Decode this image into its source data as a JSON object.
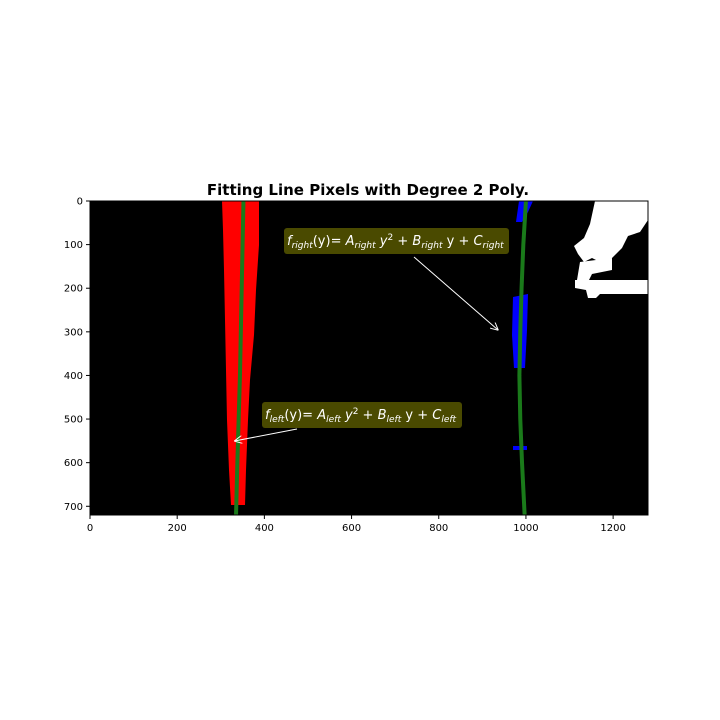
{
  "chart_data": {
    "type": "image",
    "title": "Fitting Line Pixels with Degree 2 Poly.",
    "xlim": [
      0,
      1280
    ],
    "ylim": [
      720,
      0
    ],
    "x_ticks": [
      0,
      200,
      400,
      600,
      800,
      1000,
      1200
    ],
    "y_ticks": [
      0,
      100,
      200,
      300,
      400,
      500,
      600,
      700
    ],
    "grid": false,
    "colors": {
      "background": "#000000",
      "left_pixels": "#ff0000",
      "right_pixels": "#0000ff",
      "fit_line": "#1a7a1a",
      "other_pixels": "#ffffff",
      "annotation_box": "#4a4a00"
    },
    "fits": [
      {
        "lane": "left",
        "points": [
          [
            352,
            0
          ],
          [
            350,
            100
          ],
          [
            348,
            200
          ],
          [
            346,
            300
          ],
          [
            344,
            400
          ],
          [
            341,
            500
          ],
          [
            338,
            600
          ],
          [
            335,
            720
          ]
        ]
      },
      {
        "lane": "right",
        "points": [
          [
            1000,
            0
          ],
          [
            994,
            100
          ],
          [
            990,
            200
          ],
          [
            987,
            300
          ],
          [
            985,
            400
          ],
          [
            987,
            500
          ],
          [
            991,
            600
          ],
          [
            997,
            720
          ]
        ]
      }
    ],
    "annotations": [
      {
        "id": "right",
        "pieces": [
          {
            "t": "f",
            "style": "italic"
          },
          {
            "t": "right",
            "style": "sub"
          },
          {
            "t": "(y)= ",
            "style": "normal"
          },
          {
            "t": "A",
            "style": "italic"
          },
          {
            "t": "right",
            "style": "sub"
          },
          {
            "t": " y",
            "style": "italic"
          },
          {
            "t": "2",
            "style": "sup"
          },
          {
            "t": " + ",
            "style": "normal"
          },
          {
            "t": "B",
            "style": "italic"
          },
          {
            "t": "right",
            "style": "sub"
          },
          {
            "t": " y + ",
            "style": "normal"
          },
          {
            "t": "C",
            "style": "italic"
          },
          {
            "t": "right",
            "style": "sub"
          }
        ],
        "arrow_to": [
          935,
          295
        ]
      },
      {
        "id": "left",
        "pieces": [
          {
            "t": "f",
            "style": "italic"
          },
          {
            "t": "left",
            "style": "sub"
          },
          {
            "t": "(y)= ",
            "style": "normal"
          },
          {
            "t": "A",
            "style": "italic"
          },
          {
            "t": "left",
            "style": "sub"
          },
          {
            "t": " y",
            "style": "italic"
          },
          {
            "t": "2",
            "style": "sup"
          },
          {
            "t": " + ",
            "style": "normal"
          },
          {
            "t": "B",
            "style": "italic"
          },
          {
            "t": "left",
            "style": "sub"
          },
          {
            "t": " y + ",
            "style": "normal"
          },
          {
            "t": "C",
            "style": "italic"
          },
          {
            "t": "left",
            "style": "sub"
          }
        ],
        "arrow_to": [
          333,
          550
        ]
      }
    ]
  }
}
